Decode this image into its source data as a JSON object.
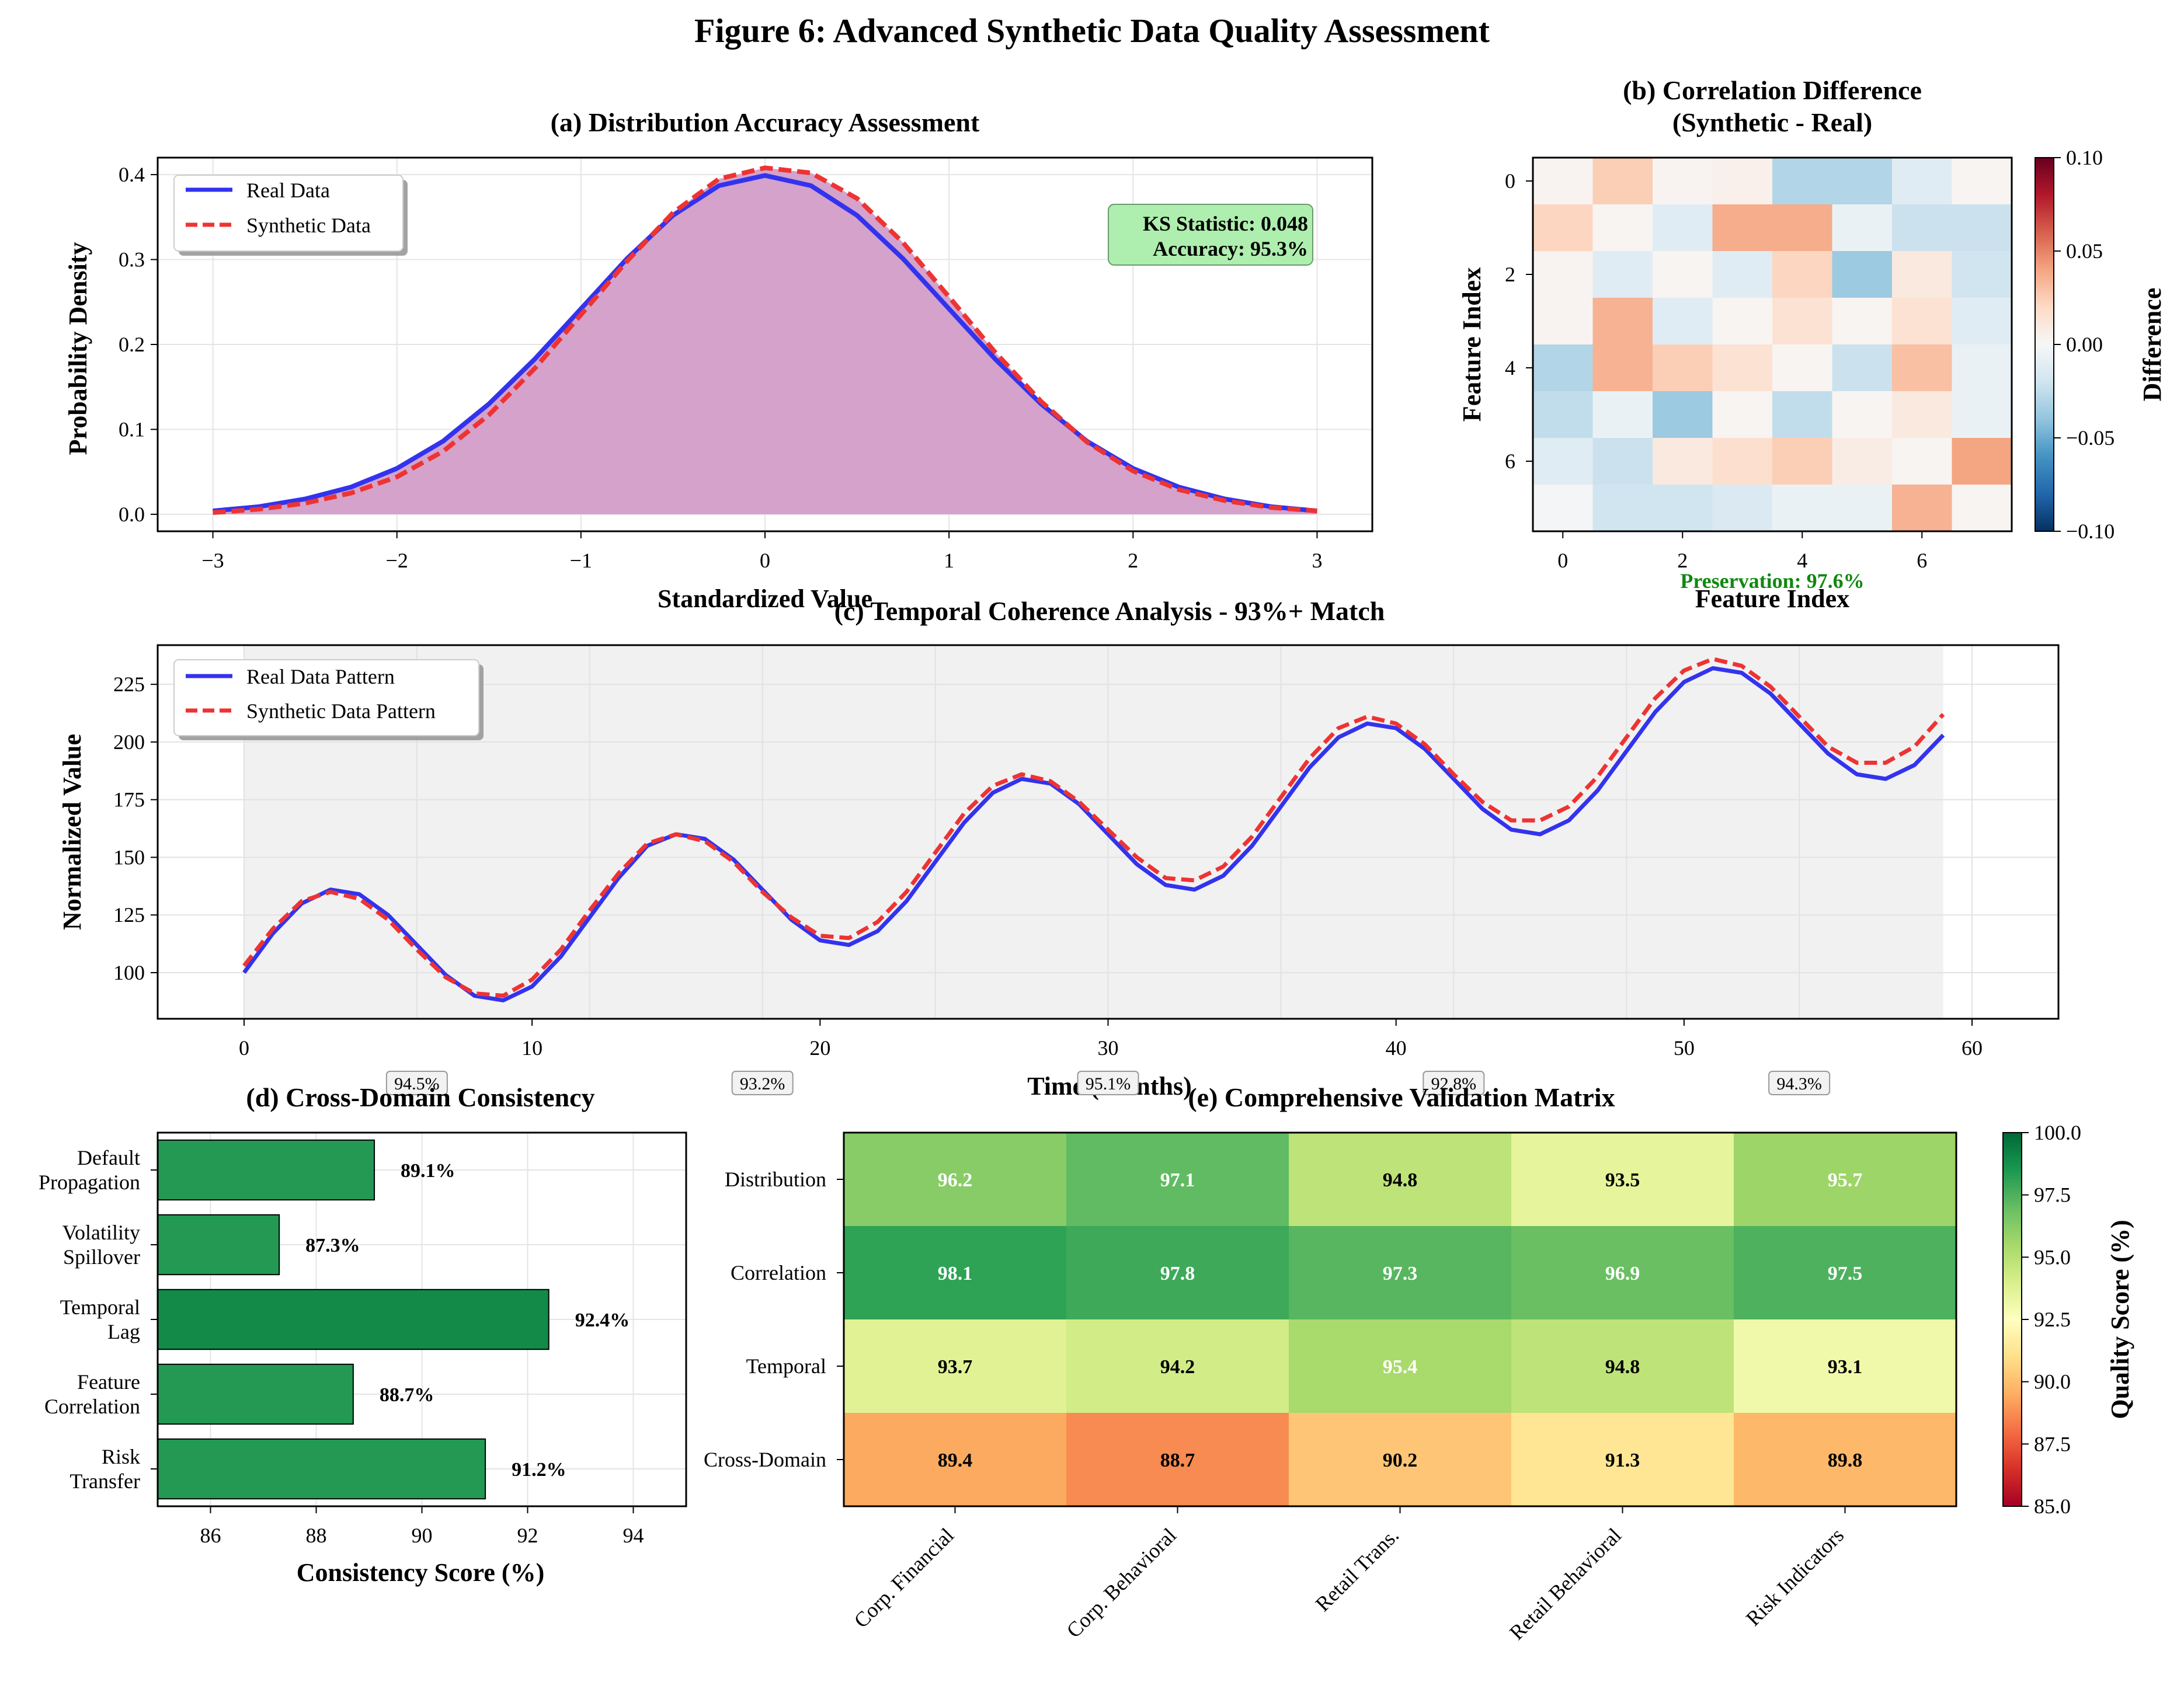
{
  "figure_title": "Figure 6: Advanced Synthetic Data Quality Assessment",
  "colors": {
    "real": "#3333ee",
    "synthetic": "#ee3333",
    "fill": "#d4a2cb",
    "bar": "#239954",
    "bar_dark": "#138a47",
    "ks_box": "#aeeeae",
    "preservation_text": "#118811",
    "temporal_bg": "#f1f1f1"
  },
  "chart_data": [
    {
      "id": "a",
      "type": "line",
      "title": "(a) Distribution Accuracy Assessment",
      "xlabel": "Standardized Value",
      "ylabel": "Probability Density",
      "xlim": [
        -3.3,
        3.3
      ],
      "ylim": [
        -0.02,
        0.42
      ],
      "xticks": [
        -3,
        -2,
        -1,
        0,
        1,
        2,
        3
      ],
      "xtick_labels": [
        "−3",
        "−2",
        "−1",
        "0",
        "1",
        "2",
        "3"
      ],
      "yticks": [
        0.0,
        0.1,
        0.2,
        0.3,
        0.4
      ],
      "ytick_labels": [
        "0.0",
        "0.1",
        "0.2",
        "0.3",
        "0.4"
      ],
      "x": [
        -3.0,
        -2.75,
        -2.5,
        -2.25,
        -2.0,
        -1.75,
        -1.5,
        -1.25,
        -1.0,
        -0.75,
        -0.5,
        -0.25,
        0.0,
        0.25,
        0.5,
        0.75,
        1.0,
        1.25,
        1.5,
        1.75,
        2.0,
        2.25,
        2.5,
        2.75,
        3.0
      ],
      "series": [
        {
          "name": "Real Data",
          "style": "solid",
          "values": [
            0.004,
            0.009,
            0.018,
            0.032,
            0.054,
            0.086,
            0.13,
            0.183,
            0.242,
            0.301,
            0.352,
            0.387,
            0.399,
            0.387,
            0.352,
            0.301,
            0.242,
            0.183,
            0.13,
            0.086,
            0.054,
            0.032,
            0.018,
            0.009,
            0.004
          ]
        },
        {
          "name": "Synthetic Data",
          "style": "dashed",
          "values": [
            0.002,
            0.006,
            0.013,
            0.025,
            0.044,
            0.074,
            0.117,
            0.172,
            0.235,
            0.298,
            0.355,
            0.395,
            0.408,
            0.402,
            0.372,
            0.32,
            0.256,
            0.191,
            0.133,
            0.085,
            0.051,
            0.029,
            0.016,
            0.008,
            0.004
          ]
        }
      ],
      "annotation": {
        "line1": "KS Statistic: 0.048",
        "line2": "Accuracy: 95.3%"
      },
      "grid": true,
      "legend": "upper-left"
    },
    {
      "id": "b",
      "type": "heatmap",
      "title_line1": "(b) Correlation Difference",
      "title_line2": "(Synthetic - Real)",
      "xlabel": "Feature Index",
      "ylabel": "Feature Index",
      "xticks": [
        0,
        2,
        4,
        6
      ],
      "yticks": [
        0,
        2,
        4,
        6
      ],
      "colorbar_label": "Difference",
      "colorbar_ticks": [
        0.1,
        0.05,
        0.0,
        -0.05,
        -0.1
      ],
      "colorbar_tick_labels": [
        "0.10",
        "0.05",
        "0.00",
        "−0.05",
        "−0.10"
      ],
      "vmin": -0.1,
      "vmax": 0.1,
      "values": [
        [
          0.003,
          0.025,
          0.003,
          0.005,
          -0.03,
          -0.03,
          -0.012,
          0.002
        ],
        [
          0.022,
          0.002,
          -0.012,
          0.037,
          0.037,
          -0.007,
          -0.022,
          -0.022
        ],
        [
          0.003,
          -0.012,
          0.002,
          -0.012,
          0.022,
          -0.037,
          0.01,
          -0.02
        ],
        [
          0.003,
          0.035,
          -0.012,
          0.002,
          0.015,
          0.002,
          0.015,
          -0.012
        ],
        [
          -0.03,
          0.035,
          0.025,
          0.015,
          0.002,
          -0.022,
          0.03,
          -0.007
        ],
        [
          -0.025,
          -0.007,
          -0.037,
          0.002,
          -0.025,
          0.002,
          0.01,
          -0.007
        ],
        [
          -0.012,
          -0.022,
          0.01,
          0.017,
          0.025,
          0.008,
          0.002,
          0.04
        ],
        [
          -0.002,
          -0.02,
          -0.02,
          -0.015,
          -0.007,
          -0.007,
          0.035,
          0.002
        ]
      ],
      "annotation": "Preservation: 97.6%"
    },
    {
      "id": "c",
      "type": "line",
      "title": "(c) Temporal Coherence Analysis - 93%+ Match",
      "xlabel": "Time (Months)",
      "ylabel": "Normalized Value",
      "xlim": [
        -3,
        63
      ],
      "ylim": [
        80,
        242
      ],
      "xticks": [
        0,
        10,
        20,
        30,
        40,
        50,
        60
      ],
      "yticks": [
        100,
        125,
        150,
        175,
        200,
        225
      ],
      "x_start": 0,
      "series": [
        {
          "name": "Real Data Pattern",
          "style": "solid",
          "values": [
            100,
            117,
            130,
            136,
            134,
            125,
            112,
            99,
            90,
            88,
            94,
            107,
            124,
            141,
            155,
            160,
            158,
            149,
            136,
            123,
            114,
            112,
            118,
            131,
            148,
            165,
            178,
            184,
            182,
            173,
            160,
            147,
            138,
            136,
            142,
            155,
            172,
            189,
            202,
            208,
            206,
            197,
            184,
            171,
            162,
            160,
            166,
            179,
            196,
            213,
            226,
            232,
            230,
            221,
            208,
            195,
            186,
            184,
            190,
            203
          ]
        },
        {
          "name": "Synthetic Data Pattern",
          "style": "dashed",
          "values": [
            103,
            119,
            131,
            135,
            132,
            123,
            110,
            98,
            91,
            90,
            97,
            110,
            127,
            143,
            156,
            160,
            157,
            148,
            135,
            124,
            116,
            115,
            122,
            135,
            152,
            169,
            181,
            186,
            183,
            174,
            162,
            150,
            141,
            140,
            146,
            159,
            176,
            193,
            206,
            211,
            208,
            199,
            186,
            174,
            166,
            166,
            172,
            185,
            202,
            219,
            231,
            236,
            233,
            224,
            211,
            198,
            191,
            191,
            198,
            212
          ]
        }
      ],
      "shade_range": [
        0,
        59
      ],
      "segment_scores": [
        {
          "x": 6,
          "label": "94.5%"
        },
        {
          "x": 18,
          "label": "93.2%"
        },
        {
          "x": 30,
          "label": "95.1%"
        },
        {
          "x": 42,
          "label": "92.8%"
        },
        {
          "x": 54,
          "label": "94.3%"
        }
      ],
      "grid": true,
      "legend": "upper-left"
    },
    {
      "id": "d",
      "type": "bar",
      "orientation": "horizontal",
      "title": "(d) Cross-Domain Consistency",
      "xlabel": "Consistency Score (%)",
      "xlim": [
        85,
        95
      ],
      "xticks": [
        86,
        88,
        90,
        92,
        94
      ],
      "categories": [
        [
          "Default",
          "Propagation"
        ],
        [
          "Volatility",
          "Spillover"
        ],
        [
          "Temporal",
          "Lag"
        ],
        [
          "Feature",
          "Correlation"
        ],
        [
          "Risk",
          "Transfer"
        ]
      ],
      "values": [
        89.1,
        87.3,
        92.4,
        88.7,
        91.2
      ],
      "labels": [
        "89.1%",
        "87.3%",
        "92.4%",
        "88.7%",
        "91.2%"
      ],
      "grid": true
    },
    {
      "id": "e",
      "type": "heatmap",
      "title": "(e) Comprehensive Validation Matrix",
      "rows": [
        "Distribution",
        "Correlation",
        "Temporal",
        "Cross-Domain"
      ],
      "columns": [
        "Corp. Financial",
        "Corp. Behavioral",
        "Retail Trans.",
        "Retail Behavioral",
        "Risk Indicators"
      ],
      "values": [
        [
          96.2,
          97.1,
          94.8,
          93.5,
          95.7
        ],
        [
          98.1,
          97.8,
          97.3,
          96.9,
          97.5
        ],
        [
          93.7,
          94.2,
          95.4,
          94.8,
          93.1
        ],
        [
          89.4,
          88.7,
          90.2,
          91.3,
          89.8
        ]
      ],
      "text_color": [
        [
          "white",
          "white",
          "black",
          "black",
          "white"
        ],
        [
          "white",
          "white",
          "white",
          "white",
          "white"
        ],
        [
          "black",
          "black",
          "white",
          "black",
          "black"
        ],
        [
          "black",
          "black",
          "black",
          "black",
          "black"
        ]
      ],
      "vmin": 85,
      "vmax": 100,
      "colorbar_label": "Quality Score (%)",
      "colorbar_ticks": [
        100.0,
        97.5,
        95.0,
        92.5,
        90.0,
        87.5,
        85.0
      ],
      "colorbar_tick_labels": [
        "100.0",
        "97.5",
        "95.0",
        "92.5",
        "90.0",
        "87.5",
        "85.0"
      ]
    }
  ]
}
